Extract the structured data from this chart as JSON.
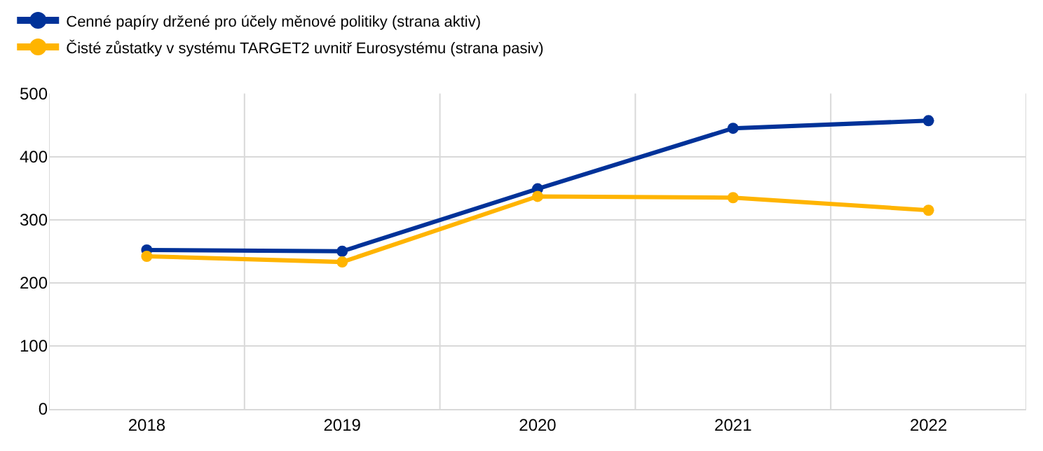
{
  "chart_data": {
    "type": "line",
    "categories": [
      "2018",
      "2019",
      "2020",
      "2021",
      "2022"
    ],
    "series": [
      {
        "name": "Cenné papíry držené pro účely měnové politiky (strana aktiv)",
        "color": "#003299",
        "values": [
          252,
          250,
          349,
          445,
          457
        ]
      },
      {
        "name": "Čisté zůstatky v systému TARGET2 uvnitř Eurosystému (strana pasiv)",
        "color": "#ffb400",
        "values": [
          242,
          233,
          337,
          335,
          315
        ]
      }
    ],
    "ylim": [
      0,
      500
    ],
    "yticks": [
      0,
      100,
      200,
      300,
      400,
      500
    ],
    "grid": true,
    "legend": "top left",
    "marker": "circle",
    "line_style": "solid"
  }
}
